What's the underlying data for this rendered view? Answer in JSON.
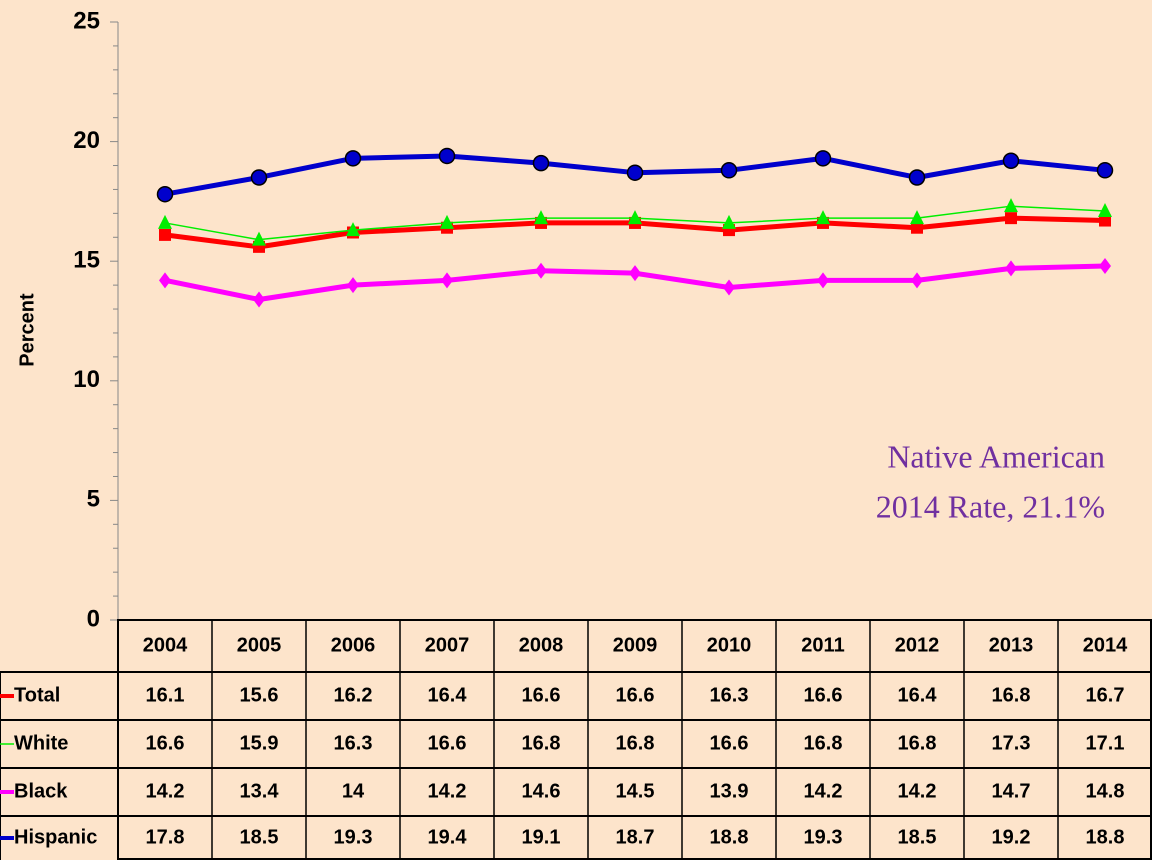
{
  "chart_data": {
    "type": "line",
    "y_label": "Percent",
    "annotation": [
      "Native American",
      "2014 Rate,  21.1%"
    ],
    "categories": [
      "2004",
      "2005",
      "2006",
      "2007",
      "2008",
      "2009",
      "2010",
      "2011",
      "2012",
      "2013",
      "2014"
    ],
    "series": [
      {
        "name": "Total",
        "color": "#ff0000",
        "values": [
          16.1,
          15.6,
          16.2,
          16.4,
          16.6,
          16.6,
          16.3,
          16.6,
          16.4,
          16.8,
          16.7
        ]
      },
      {
        "name": "White",
        "color": "#00ee00",
        "values": [
          16.6,
          15.9,
          16.3,
          16.6,
          16.8,
          16.8,
          16.6,
          16.8,
          16.8,
          17.3,
          17.1
        ]
      },
      {
        "name": "Black",
        "color": "#ff00ff",
        "values": [
          14.2,
          13.4,
          14,
          14.2,
          14.6,
          14.5,
          13.9,
          14.2,
          14.2,
          14.7,
          14.8
        ]
      },
      {
        "name": "Hispanic",
        "color": "#0000cc",
        "values": [
          17.8,
          18.5,
          19.3,
          19.4,
          19.1,
          18.7,
          18.8,
          19.3,
          18.5,
          19.2,
          18.8
        ]
      }
    ],
    "ylim": [
      0,
      25
    ],
    "yticks": [
      0,
      5,
      10,
      15,
      20,
      25
    ]
  }
}
